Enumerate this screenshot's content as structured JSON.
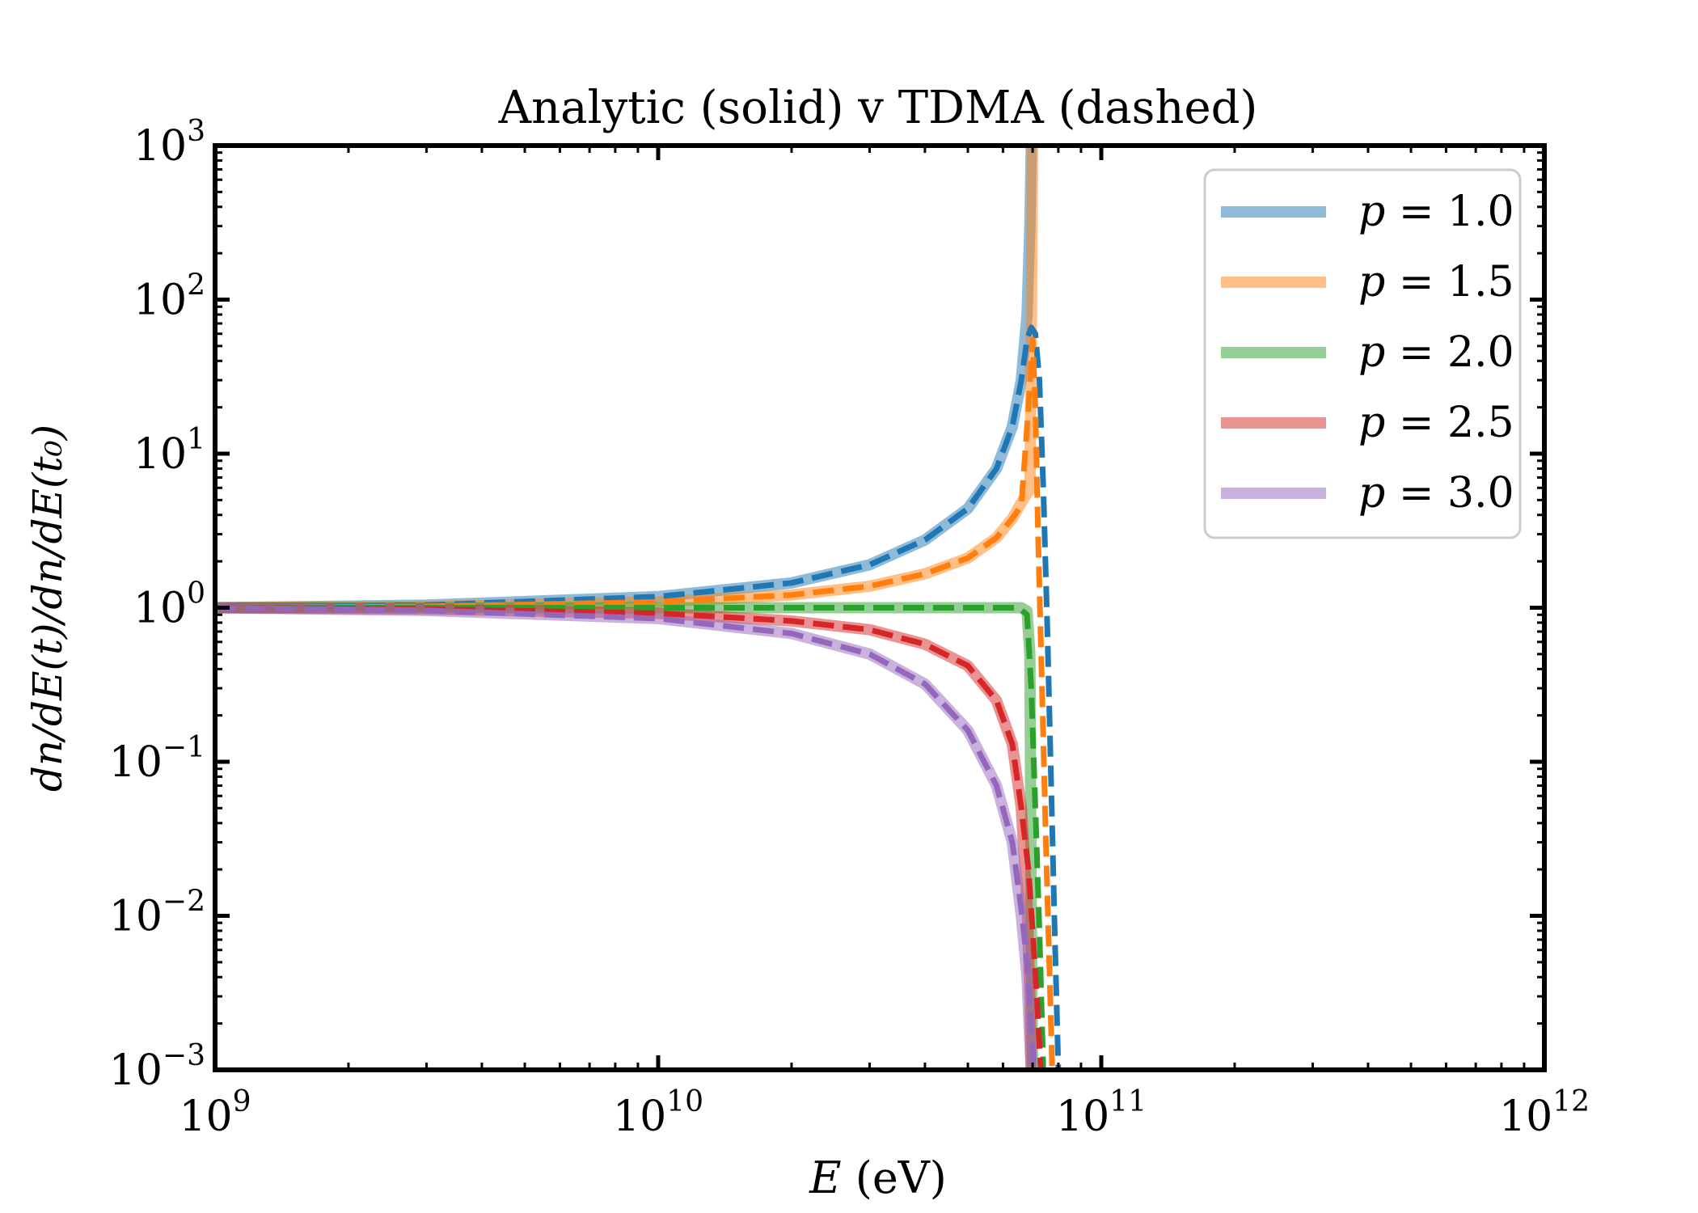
{
  "chart_data": {
    "type": "line",
    "title": "Analytic (solid) v TDMA (dashed)",
    "xlabel": {
      "var": "E",
      "unit": "(eV)"
    },
    "ylabel": "dn/dE(t)/dn/dE(t₀)",
    "xscale": "log",
    "yscale": "log",
    "xlim": [
      1000000000.0,
      1000000000000.0
    ],
    "ylim": [
      0.001,
      1000
    ],
    "x_ticks": [
      {
        "base": "10",
        "exp": "9"
      },
      {
        "base": "10",
        "exp": "10"
      },
      {
        "base": "10",
        "exp": "11"
      },
      {
        "base": "10",
        "exp": "12"
      }
    ],
    "y_ticks": [
      {
        "base": "10",
        "exp": "−3"
      },
      {
        "base": "10",
        "exp": "−2"
      },
      {
        "base": "10",
        "exp": "−1"
      },
      {
        "base": "10",
        "exp": "0"
      },
      {
        "base": "10",
        "exp": "1"
      },
      {
        "base": "10",
        "exp": "2"
      },
      {
        "base": "10",
        "exp": "3"
      }
    ],
    "grid": false,
    "legend_position": "top-right",
    "series": [
      {
        "name": "p = 1.0",
        "p_label": "p",
        "p_value": "1.0",
        "color": "#1f77b4",
        "analytic": [
          [
            1000000000.0,
            1.0
          ],
          [
            3000000000.0,
            1.04
          ],
          [
            10000000000.0,
            1.18
          ],
          [
            20000000000.0,
            1.45
          ],
          [
            30000000000.0,
            1.9
          ],
          [
            40000000000.0,
            2.75
          ],
          [
            50000000000.0,
            4.4
          ],
          [
            58000000000.0,
            8.0
          ],
          [
            63000000000.0,
            15.0
          ],
          [
            66000000000.0,
            30.0
          ],
          [
            68000000000.0,
            80.0
          ],
          [
            69000000000.0,
            300.0
          ],
          [
            69500000000.0,
            1000.0
          ]
        ],
        "tdma": [
          [
            1000000000.0,
            1.0
          ],
          [
            3000000000.0,
            1.04
          ],
          [
            10000000000.0,
            1.18
          ],
          [
            20000000000.0,
            1.45
          ],
          [
            30000000000.0,
            1.9
          ],
          [
            40000000000.0,
            2.75
          ],
          [
            50000000000.0,
            4.4
          ],
          [
            58000000000.0,
            8.0
          ],
          [
            63000000000.0,
            15.0
          ],
          [
            66000000000.0,
            30.0
          ],
          [
            68000000000.0,
            55.0
          ],
          [
            69500000000.0,
            66.0
          ],
          [
            71000000000.0,
            60.0
          ],
          [
            72500000000.0,
            30.0
          ],
          [
            74000000000.0,
            6.0
          ],
          [
            75500000000.0,
            0.8
          ],
          [
            77000000000.0,
            0.08
          ],
          [
            78500000000.0,
            0.008
          ],
          [
            80000000000.0,
            0.001
          ]
        ]
      },
      {
        "name": "p = 1.5",
        "p_label": "p",
        "p_value": "1.5",
        "color": "#ff7f0e",
        "analytic": [
          [
            1000000000.0,
            1.0
          ],
          [
            3000000000.0,
            1.02
          ],
          [
            10000000000.0,
            1.09
          ],
          [
            20000000000.0,
            1.21
          ],
          [
            30000000000.0,
            1.38
          ],
          [
            40000000000.0,
            1.66
          ],
          [
            50000000000.0,
            2.1
          ],
          [
            58000000000.0,
            2.85
          ],
          [
            63000000000.0,
            3.8
          ],
          [
            66000000000.0,
            4.8
          ],
          [
            68000000000.0,
            5.5
          ],
          [
            69000000000.0,
            5.8
          ],
          [
            69500000000.0,
            50.0
          ],
          [
            70000000000.0,
            1000.0
          ]
        ],
        "tdma": [
          [
            1000000000.0,
            1.0
          ],
          [
            3000000000.0,
            1.02
          ],
          [
            10000000000.0,
            1.09
          ],
          [
            20000000000.0,
            1.21
          ],
          [
            30000000000.0,
            1.38
          ],
          [
            40000000000.0,
            1.66
          ],
          [
            50000000000.0,
            2.1
          ],
          [
            58000000000.0,
            2.85
          ],
          [
            63000000000.0,
            3.8
          ],
          [
            66000000000.0,
            4.6
          ],
          [
            68500000000.0,
            20.0
          ],
          [
            70000000000.0,
            55.0
          ],
          [
            71000000000.0,
            20.0
          ],
          [
            72000000000.0,
            3.0
          ],
          [
            73500000000.0,
            0.3
          ],
          [
            75000000000.0,
            0.03
          ],
          [
            76500000000.0,
            0.004
          ],
          [
            77500000000.0,
            0.001
          ]
        ]
      },
      {
        "name": "p = 2.0",
        "p_label": "p",
        "p_value": "2.0",
        "color": "#2ca02c",
        "analytic": [
          [
            1000000000.0,
            1.0
          ],
          [
            10000000000.0,
            1.0
          ],
          [
            50000000000.0,
            1.0
          ],
          [
            66000000000.0,
            1.0
          ],
          [
            68000000000.0,
            0.95
          ],
          [
            69000000000.0,
            0.5
          ],
          [
            69500000000.0,
            0.01
          ],
          [
            70000000000.0,
            0.001
          ]
        ],
        "tdma": [
          [
            1000000000.0,
            1.0
          ],
          [
            10000000000.0,
            1.0
          ],
          [
            50000000000.0,
            1.0
          ],
          [
            65000000000.0,
            1.0
          ],
          [
            68000000000.0,
            0.9
          ],
          [
            69500000000.0,
            0.3
          ],
          [
            71000000000.0,
            0.05
          ],
          [
            72500000000.0,
            0.008
          ],
          [
            74000000000.0,
            0.001
          ]
        ]
      },
      {
        "name": "p = 2.5",
        "p_label": "p",
        "p_value": "2.5",
        "color": "#d62728",
        "analytic": [
          [
            1000000000.0,
            1.0
          ],
          [
            3000000000.0,
            0.98
          ],
          [
            10000000000.0,
            0.92
          ],
          [
            20000000000.0,
            0.82
          ],
          [
            30000000000.0,
            0.72
          ],
          [
            40000000000.0,
            0.58
          ],
          [
            50000000000.0,
            0.42
          ],
          [
            58000000000.0,
            0.25
          ],
          [
            63000000000.0,
            0.13
          ],
          [
            66000000000.0,
            0.05
          ],
          [
            68000000000.0,
            0.012
          ],
          [
            69000000000.0,
            0.003
          ],
          [
            69500000000.0,
            0.001
          ]
        ],
        "tdma": [
          [
            1000000000.0,
            1.0
          ],
          [
            3000000000.0,
            0.98
          ],
          [
            10000000000.0,
            0.92
          ],
          [
            20000000000.0,
            0.82
          ],
          [
            30000000000.0,
            0.72
          ],
          [
            40000000000.0,
            0.58
          ],
          [
            50000000000.0,
            0.42
          ],
          [
            58000000000.0,
            0.25
          ],
          [
            63000000000.0,
            0.13
          ],
          [
            66000000000.0,
            0.05
          ],
          [
            68500000000.0,
            0.02
          ],
          [
            70000000000.0,
            0.008
          ],
          [
            71500000000.0,
            0.003
          ],
          [
            73000000000.0,
            0.001
          ]
        ]
      },
      {
        "name": "p = 3.0",
        "p_label": "p",
        "p_value": "3.0",
        "color": "#9467bd",
        "analytic": [
          [
            1000000000.0,
            1.0
          ],
          [
            3000000000.0,
            0.96
          ],
          [
            10000000000.0,
            0.85
          ],
          [
            20000000000.0,
            0.68
          ],
          [
            30000000000.0,
            0.5
          ],
          [
            40000000000.0,
            0.32
          ],
          [
            50000000000.0,
            0.16
          ],
          [
            58000000000.0,
            0.07
          ],
          [
            63000000000.0,
            0.03
          ],
          [
            66000000000.0,
            0.01
          ],
          [
            68000000000.0,
            0.004
          ],
          [
            69000000000.0,
            0.0015
          ],
          [
            69500000000.0,
            0.001
          ]
        ],
        "tdma": [
          [
            1000000000.0,
            1.0
          ],
          [
            3000000000.0,
            0.96
          ],
          [
            10000000000.0,
            0.85
          ],
          [
            20000000000.0,
            0.68
          ],
          [
            30000000000.0,
            0.5
          ],
          [
            40000000000.0,
            0.32
          ],
          [
            50000000000.0,
            0.16
          ],
          [
            58000000000.0,
            0.07
          ],
          [
            63000000000.0,
            0.03
          ],
          [
            66000000000.0,
            0.011
          ],
          [
            68000000000.0,
            0.005
          ],
          [
            69500000000.0,
            0.002
          ],
          [
            70500000000.0,
            0.001
          ]
        ]
      }
    ]
  }
}
